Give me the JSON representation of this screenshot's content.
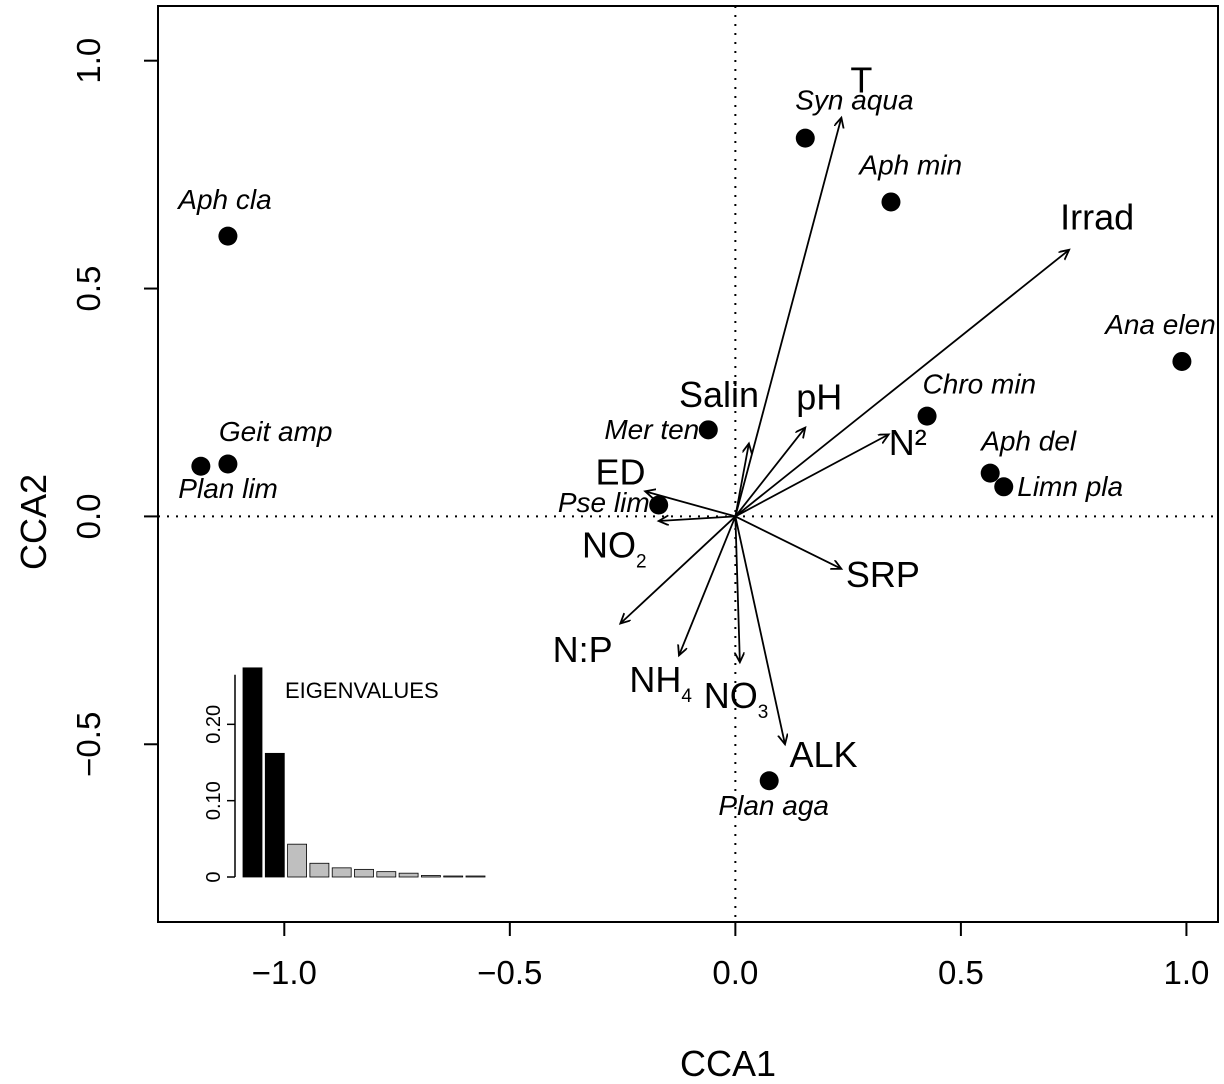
{
  "chart_data": {
    "type": "scatter",
    "xlabel": "CCA1",
    "ylabel": "CCA2",
    "xlim": [
      -1.28,
      1.07
    ],
    "ylim": [
      -0.89,
      1.12
    ],
    "xticks": [
      {
        "value": -1.0,
        "label": "−1.0"
      },
      {
        "value": -0.5,
        "label": "−0.5"
      },
      {
        "value": 0.0,
        "label": "0.0"
      },
      {
        "value": 0.5,
        "label": "0.5"
      },
      {
        "value": 1.0,
        "label": "1.0"
      }
    ],
    "yticks": [
      {
        "value": -0.5,
        "label": "−0.5"
      },
      {
        "value": 0.0,
        "label": "0.0"
      },
      {
        "value": 0.5,
        "label": "0.5"
      },
      {
        "value": 1.0,
        "label": "1.0"
      }
    ],
    "species": [
      {
        "name": "Syn aqua",
        "x": 0.155,
        "y": 0.83,
        "label_anchor": "end",
        "label_dx": 0.24,
        "label_dy": 0.063
      },
      {
        "name": "Aph min",
        "x": 0.345,
        "y": 0.69,
        "label_anchor": "start",
        "label_dx": -0.07,
        "label_dy": 0.06
      },
      {
        "name": "Aph cla",
        "x": -1.125,
        "y": 0.615,
        "label_anchor": "start",
        "label_dx": -0.11,
        "label_dy": 0.06
      },
      {
        "name": "Ana elen",
        "x": 0.99,
        "y": 0.34,
        "label_anchor": "end",
        "label_dx": 0.075,
        "label_dy": 0.06
      },
      {
        "name": "Chro min",
        "x": 0.425,
        "y": 0.22,
        "label_anchor": "start",
        "label_dx": -0.01,
        "label_dy": 0.05
      },
      {
        "name": "Mer ten",
        "x": -0.06,
        "y": 0.19,
        "label_anchor": "end",
        "label_dx": -0.02,
        "label_dy": -0.02
      },
      {
        "name": "Geit amp",
        "x": -1.125,
        "y": 0.115,
        "label_anchor": "start",
        "label_dx": -0.02,
        "label_dy": 0.05
      },
      {
        "name": "Plan lim",
        "x": -1.185,
        "y": 0.11,
        "label_anchor": "start",
        "label_dx": -0.05,
        "label_dy": -0.07
      },
      {
        "name": "Aph del",
        "x": 0.565,
        "y": 0.095,
        "label_anchor": "start",
        "label_dx": -0.02,
        "label_dy": 0.05
      },
      {
        "name": "Limn pla",
        "x": 0.595,
        "y": 0.065,
        "label_anchor": "start",
        "label_dx": 0.03,
        "label_dy": -0.02
      },
      {
        "name": "Pse lim",
        "x": -0.17,
        "y": 0.025,
        "label_anchor": "end",
        "label_dx": -0.02,
        "label_dy": -0.015
      },
      {
        "name": "Plan aga",
        "x": 0.075,
        "y": -0.58,
        "label_anchor": "middle",
        "label_dx": 0.01,
        "label_dy": -0.075
      }
    ],
    "env_vectors": [
      {
        "name": "T",
        "sub": "",
        "x": 0.235,
        "y": 0.875,
        "label_x": 0.255,
        "label_y": 0.93
      },
      {
        "name": "Irrad",
        "sub": "",
        "x": 0.74,
        "y": 0.585,
        "label_x": 0.72,
        "label_y": 0.63
      },
      {
        "name": "pH",
        "sub": "",
        "x": 0.155,
        "y": 0.195,
        "label_x": 0.135,
        "label_y": 0.235
      },
      {
        "name": "N²",
        "sub": "",
        "x": 0.34,
        "y": 0.18,
        "label_x": 0.34,
        "label_y": 0.135
      },
      {
        "name": "Salin",
        "sub": "",
        "x": 0.03,
        "y": 0.16,
        "label_x": -0.125,
        "label_y": 0.24
      },
      {
        "name": "ED",
        "sub": "",
        "x": -0.2,
        "y": 0.055,
        "label_x": -0.31,
        "label_y": 0.07
      },
      {
        "name": "NO",
        "sub": "2",
        "x": -0.17,
        "y": -0.01,
        "label_x": -0.34,
        "label_y": -0.09
      },
      {
        "name": "SRP",
        "sub": "",
        "x": 0.235,
        "y": -0.115,
        "label_x": 0.245,
        "label_y": -0.155
      },
      {
        "name": "N:P",
        "sub": "",
        "x": -0.255,
        "y": -0.235,
        "label_x": -0.405,
        "label_y": -0.32
      },
      {
        "name": "NH",
        "sub": "4",
        "x": -0.125,
        "y": -0.305,
        "label_x": -0.235,
        "label_y": -0.385
      },
      {
        "name": "NO",
        "sub": "3",
        "x": 0.01,
        "y": -0.32,
        "label_x": -0.07,
        "label_y": -0.42
      },
      {
        "name": "ALK",
        "sub": "",
        "x": 0.11,
        "y": -0.5,
        "label_x": 0.12,
        "label_y": -0.55
      }
    ],
    "eigenvalues": {
      "label": "EIGENVALUES",
      "ylim": [
        0,
        0.3
      ],
      "yticks": [
        {
          "value": 0,
          "label": "0"
        },
        {
          "value": 0.1,
          "label": "0.10"
        },
        {
          "value": 0.2,
          "label": "0.20"
        }
      ],
      "values": [
        0.274,
        0.162,
        0.043,
        0.018,
        0.012,
        0.01,
        0.007,
        0.005,
        0.002,
        0.001,
        0.0008
      ],
      "constrained_count": 2,
      "colors": {
        "constrained": "#000000",
        "unconstrained": "#bfbfbf"
      }
    },
    "grid": false,
    "reference_lines": "dotted at x=0 and y=0"
  }
}
